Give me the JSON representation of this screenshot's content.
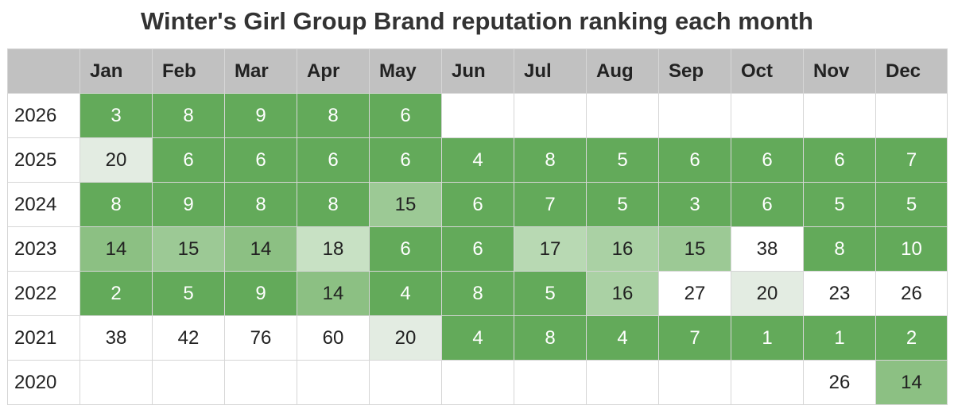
{
  "chart_data": {
    "type": "heatmap",
    "title": "Winter's Girl Group Brand reputation ranking each month",
    "columns": [
      "Jan",
      "Feb",
      "Mar",
      "Apr",
      "May",
      "Jun",
      "Jul",
      "Aug",
      "Sep",
      "Oct",
      "Nov",
      "Dec"
    ],
    "rows": [
      {
        "year": "2026",
        "values": [
          3,
          8,
          9,
          8,
          6,
          null,
          null,
          null,
          null,
          null,
          null,
          null
        ]
      },
      {
        "year": "2025",
        "values": [
          20,
          6,
          6,
          6,
          6,
          4,
          8,
          5,
          6,
          6,
          6,
          7
        ]
      },
      {
        "year": "2024",
        "values": [
          8,
          9,
          8,
          8,
          15,
          6,
          7,
          5,
          3,
          6,
          5,
          5
        ]
      },
      {
        "year": "2023",
        "values": [
          14,
          15,
          14,
          18,
          6,
          6,
          17,
          16,
          15,
          38,
          8,
          10
        ]
      },
      {
        "year": "2022",
        "values": [
          2,
          5,
          9,
          14,
          4,
          8,
          5,
          16,
          27,
          20,
          23,
          26
        ]
      },
      {
        "year": "2021",
        "values": [
          38,
          42,
          76,
          60,
          20,
          4,
          8,
          4,
          7,
          1,
          1,
          2
        ]
      },
      {
        "year": "2020",
        "values": [
          null,
          null,
          null,
          null,
          null,
          null,
          null,
          null,
          null,
          null,
          26,
          14
        ]
      }
    ],
    "color_scale": [
      {
        "max": 10,
        "color": "#63aa5a",
        "text": "#ffffff"
      },
      {
        "max": 14,
        "color": "#8cc083",
        "text": "#222222"
      },
      {
        "max": 15,
        "color": "#9cc995",
        "text": "#222222"
      },
      {
        "max": 16,
        "color": "#aad1a4",
        "text": "#222222"
      },
      {
        "max": 17,
        "color": "#b8d9b3",
        "text": "#222222"
      },
      {
        "max": 18,
        "color": "#c8e1c4",
        "text": "#222222"
      },
      {
        "max": 20,
        "color": "#e3ece2",
        "text": "#222222"
      },
      {
        "max": 1000,
        "color": "#ffffff",
        "text": "#222222"
      }
    ]
  }
}
